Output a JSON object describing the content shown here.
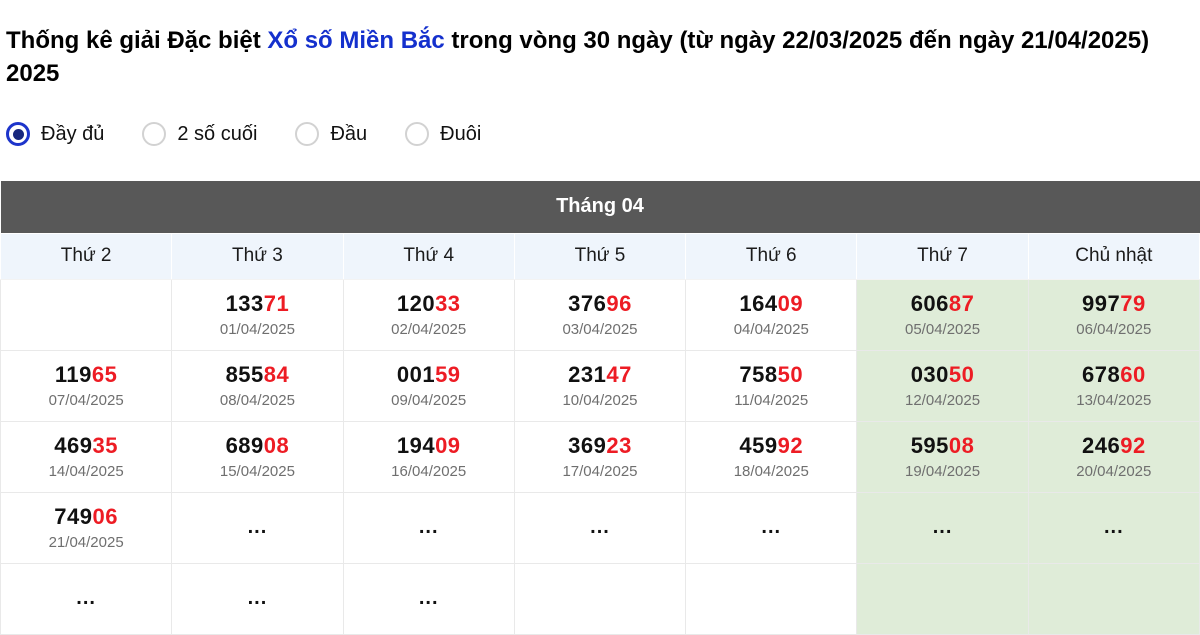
{
  "page": {
    "title_prefix": "Thống kê giải Đặc biệt ",
    "title_link": "Xổ số Miền Bắc",
    "title_suffix": " trong vòng 30 ngày (từ ngày 22/03/2025 đến ngày 21/04/2025) 2025"
  },
  "filters": [
    {
      "id": "day-du",
      "label": "Đầy đủ",
      "selected": true
    },
    {
      "id": "2-so-cuoi",
      "label": "2 số cuối",
      "selected": false
    },
    {
      "id": "dau",
      "label": "Đầu",
      "selected": false
    },
    {
      "id": "duoi",
      "label": "Đuôi",
      "selected": false
    }
  ],
  "colors": {
    "accent_red": "#ed1c24",
    "link_blue": "#1430cd",
    "month_header_gray": "#585858",
    "weekend_green": "#dfecd8",
    "day_header_bg": "#eff5fc"
  },
  "table": {
    "month_title": "Tháng 04",
    "day_headers": [
      "Thứ 2",
      "Thứ 3",
      "Thứ 4",
      "Thứ 5",
      "Thứ 6",
      "Thứ 7",
      "Chủ nhật"
    ],
    "weekend_columns": [
      5,
      6
    ],
    "ellipsis": "...",
    "rows": [
      [
        null,
        {
          "main": "133",
          "tail": "71",
          "date": "01/04/2025"
        },
        {
          "main": "120",
          "tail": "33",
          "date": "02/04/2025"
        },
        {
          "main": "376",
          "tail": "96",
          "date": "03/04/2025"
        },
        {
          "main": "164",
          "tail": "09",
          "date": "04/04/2025"
        },
        {
          "main": "606",
          "tail": "87",
          "date": "05/04/2025"
        },
        {
          "main": "997",
          "tail": "79",
          "date": "06/04/2025"
        }
      ],
      [
        {
          "main": "119",
          "tail": "65",
          "date": "07/04/2025"
        },
        {
          "main": "855",
          "tail": "84",
          "date": "08/04/2025"
        },
        {
          "main": "001",
          "tail": "59",
          "date": "09/04/2025"
        },
        {
          "main": "231",
          "tail": "47",
          "date": "10/04/2025"
        },
        {
          "main": "758",
          "tail": "50",
          "date": "11/04/2025"
        },
        {
          "main": "030",
          "tail": "50",
          "date": "12/04/2025"
        },
        {
          "main": "678",
          "tail": "60",
          "date": "13/04/2025"
        }
      ],
      [
        {
          "main": "469",
          "tail": "35",
          "date": "14/04/2025"
        },
        {
          "main": "689",
          "tail": "08",
          "date": "15/04/2025"
        },
        {
          "main": "194",
          "tail": "09",
          "date": "16/04/2025"
        },
        {
          "main": "369",
          "tail": "23",
          "date": "17/04/2025"
        },
        {
          "main": "459",
          "tail": "92",
          "date": "18/04/2025"
        },
        {
          "main": "595",
          "tail": "08",
          "date": "19/04/2025"
        },
        {
          "main": "246",
          "tail": "92",
          "date": "20/04/2025"
        }
      ],
      [
        {
          "main": "749",
          "tail": "06",
          "date": "21/04/2025"
        },
        {
          "dots": true
        },
        {
          "dots": true
        },
        {
          "dots": true
        },
        {
          "dots": true
        },
        {
          "dots": true
        },
        {
          "dots": true
        }
      ],
      [
        {
          "dots": true
        },
        {
          "dots": true
        },
        {
          "dots": true
        },
        null,
        null,
        null,
        null
      ]
    ]
  }
}
